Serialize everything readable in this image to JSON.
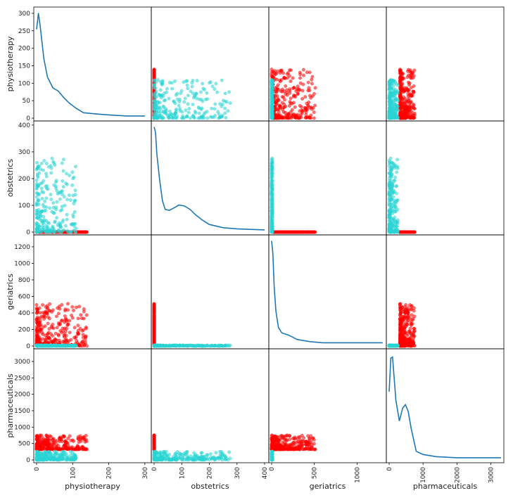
{
  "chart_data": {
    "type": "scatter",
    "variables": [
      "physiotherapy",
      "obstetrics",
      "geriatrics",
      "pharmaceuticals"
    ],
    "colors": {
      "group_a": "#ff0000",
      "group_b": "#2ad4d4",
      "kde": "#1f77b4"
    },
    "ranges": {
      "physiotherapy": [
        0,
        310
      ],
      "obstetrics": [
        0,
        405
      ],
      "geriatrics": [
        0,
        1310
      ],
      "pharmaceuticals": [
        0,
        3300
      ]
    },
    "ticks": {
      "physiotherapy": [
        0,
        100,
        200,
        300
      ],
      "obstetrics": [
        0,
        100,
        200,
        300,
        400
      ],
      "geriatrics": [
        0,
        500,
        1000
      ],
      "pharmaceuticals": [
        0,
        1000,
        2000,
        3000
      ]
    },
    "y_ticks": {
      "physiotherapy": [
        0,
        50,
        100,
        150,
        200,
        250,
        300
      ],
      "obstetrics": [
        0,
        100,
        200,
        300,
        400
      ],
      "geriatrics": [
        0,
        200,
        400,
        600,
        800,
        1000,
        1200
      ],
      "pharmaceuticals": [
        0,
        500,
        1000,
        1500,
        2000,
        2500,
        3000
      ]
    },
    "diagonal": "kde",
    "kde_curves": {
      "physiotherapy": [
        [
          0,
          0.82
        ],
        [
          5,
          0.97
        ],
        [
          10,
          0.85
        ],
        [
          20,
          0.55
        ],
        [
          30,
          0.38
        ],
        [
          45,
          0.28
        ],
        [
          60,
          0.25
        ],
        [
          75,
          0.19
        ],
        [
          90,
          0.14
        ],
        [
          110,
          0.09
        ],
        [
          130,
          0.05
        ],
        [
          160,
          0.04
        ],
        [
          200,
          0.03
        ],
        [
          250,
          0.02
        ],
        [
          300,
          0.02
        ]
      ],
      "obstetrics": [
        [
          0,
          0.97
        ],
        [
          5,
          0.92
        ],
        [
          10,
          0.72
        ],
        [
          20,
          0.48
        ],
        [
          30,
          0.29
        ],
        [
          40,
          0.21
        ],
        [
          55,
          0.2
        ],
        [
          70,
          0.22
        ],
        [
          90,
          0.25
        ],
        [
          110,
          0.24
        ],
        [
          130,
          0.21
        ],
        [
          150,
          0.16
        ],
        [
          175,
          0.11
        ],
        [
          200,
          0.07
        ],
        [
          250,
          0.04
        ],
        [
          300,
          0.03
        ],
        [
          400,
          0.02
        ]
      ],
      "geriatrics": [
        [
          0,
          0.97
        ],
        [
          15,
          0.85
        ],
        [
          30,
          0.55
        ],
        [
          50,
          0.32
        ],
        [
          80,
          0.17
        ],
        [
          120,
          0.12
        ],
        [
          200,
          0.1
        ],
        [
          300,
          0.06
        ],
        [
          450,
          0.04
        ],
        [
          600,
          0.03
        ],
        [
          800,
          0.03
        ],
        [
          1000,
          0.03
        ],
        [
          1200,
          0.03
        ],
        [
          1300,
          0.03
        ]
      ],
      "pharmaceuticals": [
        [
          0,
          0.63
        ],
        [
          50,
          0.94
        ],
        [
          100,
          0.95
        ],
        [
          200,
          0.55
        ],
        [
          300,
          0.36
        ],
        [
          400,
          0.48
        ],
        [
          480,
          0.51
        ],
        [
          560,
          0.45
        ],
        [
          650,
          0.29
        ],
        [
          800,
          0.08
        ],
        [
          1000,
          0.05
        ],
        [
          1400,
          0.03
        ],
        [
          2000,
          0.02
        ],
        [
          3300,
          0.02
        ]
      ]
    },
    "scatter_series": [
      {
        "color": "group_a",
        "clusters": {
          "physiotherapy": [
            0,
            140
          ],
          "obstetrics": [
            0,
            0
          ],
          "geriatrics": [
            0,
            520
          ],
          "pharmaceuticals": [
            320,
            760
          ]
        },
        "count": 320
      },
      {
        "color": "group_b",
        "clusters": {
          "physiotherapy": [
            0,
            110
          ],
          "obstetrics": [
            0,
            280
          ],
          "geriatrics": [
            0,
            10
          ],
          "pharmaceuticals": [
            0,
            260
          ]
        },
        "count": 260
      }
    ],
    "grid": false,
    "legend": "none",
    "title": "",
    "xlabel": "",
    "ylabel": ""
  }
}
